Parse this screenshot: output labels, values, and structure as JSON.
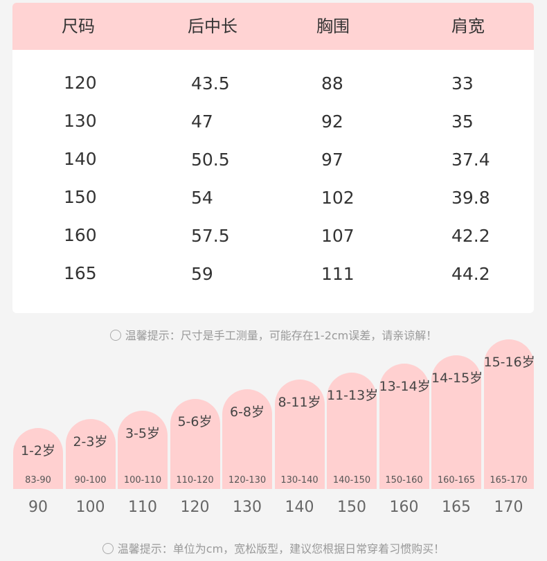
{
  "table": {
    "header": [
      "尺码",
      "后中长",
      "胸围",
      "肩宽"
    ],
    "rows": [
      [
        "120",
        "43.5",
        "88",
        "33"
      ],
      [
        "130",
        "47",
        "92",
        "35"
      ],
      [
        "140",
        "50.5",
        "97",
        "37.4"
      ],
      [
        "150",
        "54",
        "102",
        "39.8"
      ],
      [
        "160",
        "57.5",
        "107",
        "42.2"
      ],
      [
        "165",
        "59",
        "111",
        "44.2"
      ]
    ]
  },
  "tip1": "温馨提示：尺寸是手工测量，可能存在1-2cm误差，请亲谅解！",
  "sizes": [
    {
      "age": "1-2岁",
      "range": "83-90",
      "height": "90"
    },
    {
      "age": "2-3岁",
      "range": "90-100",
      "height": "100"
    },
    {
      "age": "3-5岁",
      "range": "100-110",
      "height": "110"
    },
    {
      "age": "5-6岁",
      "range": "110-120",
      "height": "120"
    },
    {
      "age": "6-8岁",
      "range": "120-130",
      "height": "130"
    },
    {
      "age": "8-11岁",
      "range": "130-140",
      "height": "140"
    },
    {
      "age": "11-13岁",
      "range": "140-150",
      "height": "150"
    },
    {
      "age": "13-14岁",
      "range": "150-160",
      "height": "160"
    },
    {
      "age": "14-15岁",
      "range": "160-165",
      "height": "165"
    },
    {
      "age": "15-16岁",
      "range": "165-170",
      "height": "170"
    }
  ],
  "tip2": "温馨提示：单位为cm，宽松版型，建议您根据日常穿着习惯购买！"
}
